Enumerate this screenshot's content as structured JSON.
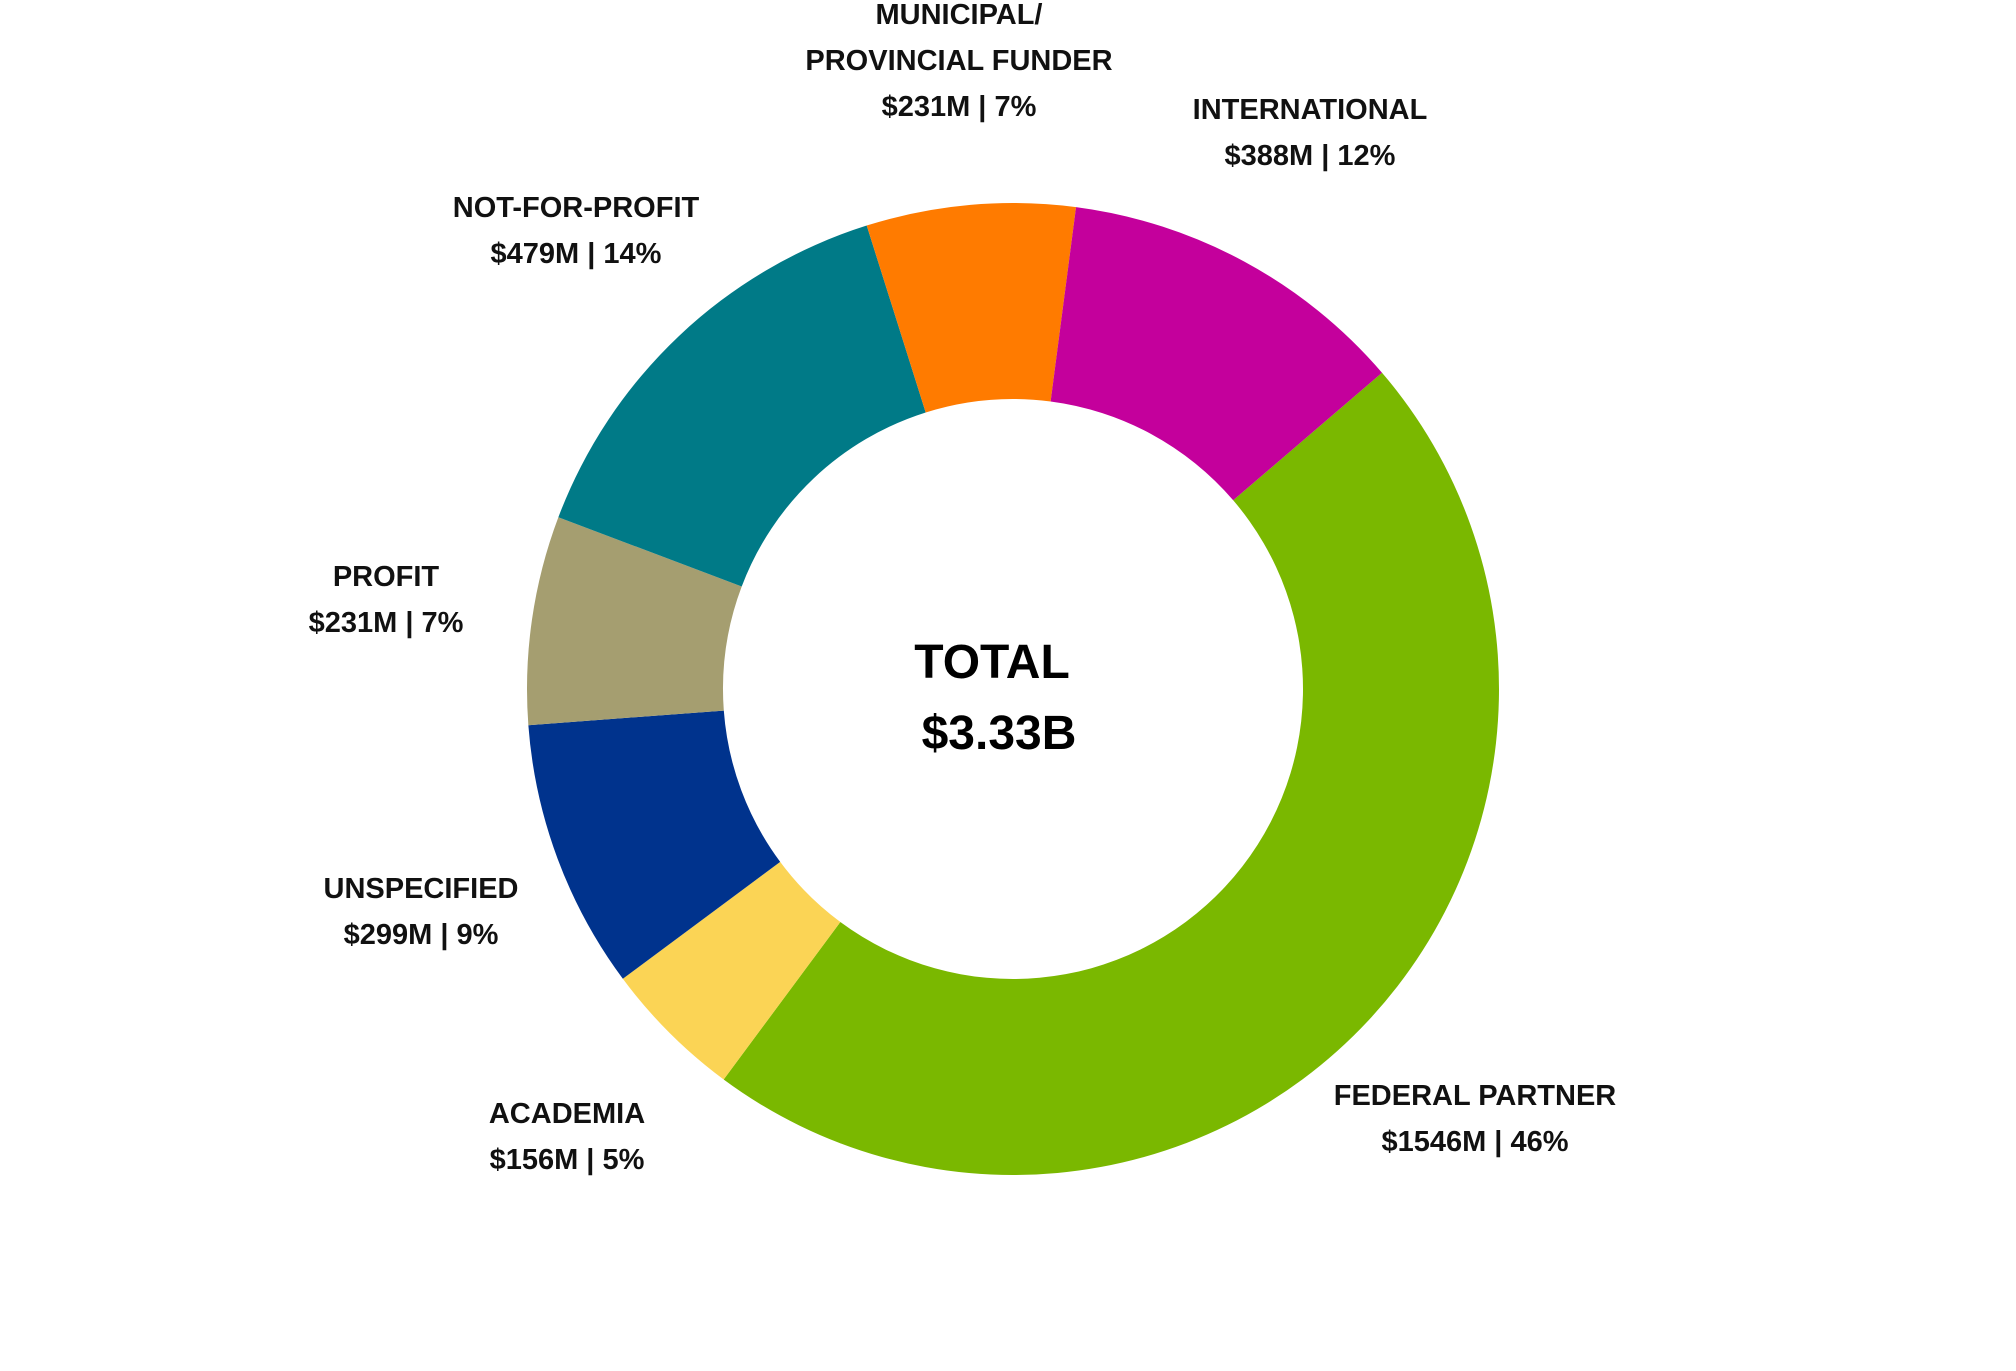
{
  "chart_data": {
    "type": "donut",
    "categories": [
      "FEDERAL PARTNER",
      "ACADEMIA",
      "UNSPECIFIED",
      "PROFIT",
      "NOT-FOR-PROFIT",
      "MUNICIPAL/\nPROVINCIAL FUNDER",
      "INTERNATIONAL"
    ],
    "values": [
      1546,
      156,
      299,
      231,
      479,
      231,
      388
    ],
    "value_labels": [
      "$1546M | 46%",
      "$156M | 5%",
      "$299M | 9%",
      "$231M | 7%",
      "$479M | 14%",
      "$231M | 7%",
      "$388M | 12%"
    ],
    "colors": [
      "#7ab800",
      "#fbd455",
      "#00338d",
      "#a59e70",
      "#007a87",
      "#ff7b00",
      "#c4009c"
    ],
    "center_text": [
      "TOTAL",
      "$3.33B"
    ]
  }
}
